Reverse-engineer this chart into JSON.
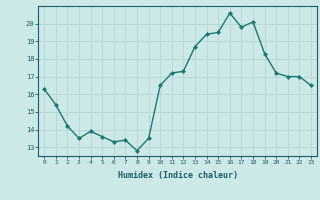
{
  "x": [
    0,
    1,
    2,
    3,
    4,
    5,
    6,
    7,
    8,
    9,
    10,
    11,
    12,
    13,
    14,
    15,
    16,
    17,
    18,
    19,
    20,
    21,
    22,
    23
  ],
  "y": [
    16.3,
    15.4,
    14.2,
    13.5,
    13.9,
    13.6,
    13.3,
    13.4,
    12.8,
    13.5,
    16.5,
    17.2,
    17.3,
    18.7,
    19.4,
    19.5,
    20.6,
    19.8,
    20.1,
    18.3,
    17.2,
    17.0,
    17.0,
    16.5
  ],
  "line_color": "#1a7a6e",
  "marker": "D",
  "marker_size": 2.0,
  "bg_color": "#cce8e8",
  "grid_color": "#b8d8d8",
  "axis_color": "#1a6060",
  "xlabel": "Humidex (Indice chaleur)",
  "xlim": [
    -0.5,
    23.5
  ],
  "ylim": [
    12.5,
    21.0
  ],
  "yticks": [
    13,
    14,
    15,
    16,
    17,
    18,
    19,
    20
  ],
  "xticks": [
    0,
    1,
    2,
    3,
    4,
    5,
    6,
    7,
    8,
    9,
    10,
    11,
    12,
    13,
    14,
    15,
    16,
    17,
    18,
    19,
    20,
    21,
    22,
    23
  ]
}
